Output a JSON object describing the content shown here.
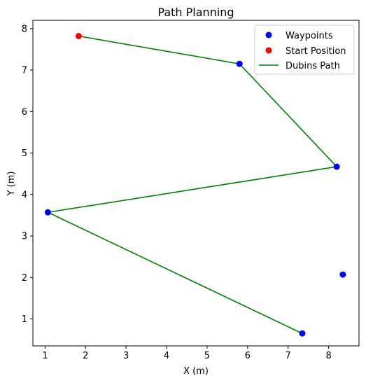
{
  "chart_data": {
    "type": "scatter",
    "title": "Path Planning",
    "xlabel": "X (m)",
    "ylabel": "Y (m)",
    "xlim": [
      0.7,
      8.75
    ],
    "ylim": [
      0.35,
      8.2
    ],
    "xticks": [
      1,
      2,
      3,
      4,
      5,
      6,
      7,
      8
    ],
    "yticks": [
      1,
      2,
      3,
      4,
      5,
      6,
      7,
      8
    ],
    "grid": false,
    "legend_position": "top-right",
    "series": [
      {
        "name": "Waypoints",
        "kind": "scatter",
        "color": "#0000ff",
        "points": [
          {
            "x": 5.8,
            "y": 7.15
          },
          {
            "x": 8.2,
            "y": 4.67
          },
          {
            "x": 1.07,
            "y": 3.57
          },
          {
            "x": 7.35,
            "y": 0.65
          },
          {
            "x": 8.35,
            "y": 2.07
          }
        ]
      },
      {
        "name": "Start Position",
        "kind": "scatter",
        "color": "#ff0000",
        "points": [
          {
            "x": 1.83,
            "y": 7.82
          }
        ]
      },
      {
        "name": "Dubins Path",
        "kind": "line",
        "color": "#008000",
        "points": [
          {
            "x": 1.83,
            "y": 7.82
          },
          {
            "x": 5.8,
            "y": 7.15
          },
          {
            "x": 8.2,
            "y": 4.67
          },
          {
            "x": 1.07,
            "y": 3.57
          },
          {
            "x": 7.35,
            "y": 0.65
          }
        ]
      }
    ]
  }
}
